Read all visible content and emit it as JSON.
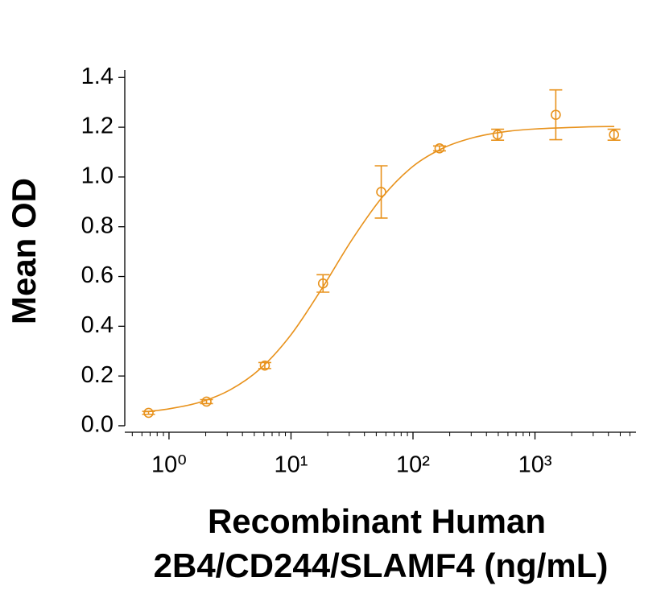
{
  "chart_data": {
    "type": "scatter",
    "xlabel": [
      "Recombinant Human",
      "2B4/CD244/SLAMF4 (ng/mL)"
    ],
    "ylabel": "Mean OD",
    "xscale": "log",
    "xlim": [
      0.434,
      6730
    ],
    "ylim": [
      -0.026,
      1.43
    ],
    "xticks": [
      {
        "value": 1,
        "label": "10⁰"
      },
      {
        "value": 10,
        "label": "10¹"
      },
      {
        "value": 100,
        "label": "10²"
      },
      {
        "value": 1000,
        "label": "10³"
      }
    ],
    "xminorticks": [
      0.5,
      0.6,
      0.7,
      0.8,
      0.9,
      2,
      3,
      4,
      5,
      6,
      7,
      8,
      9,
      20,
      30,
      40,
      50,
      60,
      70,
      80,
      90,
      200,
      300,
      400,
      500,
      600,
      700,
      800,
      900,
      2000,
      3000,
      4000,
      5000,
      6000
    ],
    "yticks": [
      {
        "value": 0,
        "label": "0.0"
      },
      {
        "value": 0.2,
        "label": "0.2"
      },
      {
        "value": 0.4,
        "label": "0.4"
      },
      {
        "value": 0.6,
        "label": "0.6"
      },
      {
        "value": 0.8,
        "label": "0.8"
      },
      {
        "value": 1.0,
        "label": "1.0"
      },
      {
        "value": 1.2,
        "label": "1.2"
      },
      {
        "value": 1.4,
        "label": "1.4"
      }
    ],
    "color": "#e8921c",
    "x": [
      0.68,
      2.03,
      6.1,
      18.3,
      54.9,
      165,
      494,
      1481,
      4444
    ],
    "values": [
      0.052,
      0.097,
      0.242,
      0.572,
      0.94,
      1.115,
      1.17,
      1.25,
      1.17
    ],
    "errors": [
      0.006,
      0.008,
      0.012,
      0.035,
      0.105,
      0.01,
      0.022,
      0.1,
      0.022
    ],
    "curve": {
      "x": [
        0.631,
        1,
        1.778,
        3.162,
        5.623,
        10,
        17.78,
        31.62,
        56.23,
        100,
        177.8,
        316.2,
        562.3,
        1000,
        2512,
        4467
      ],
      "values": [
        0.056,
        0.068,
        0.094,
        0.144,
        0.23,
        0.366,
        0.549,
        0.748,
        0.92,
        1.043,
        1.117,
        1.159,
        1.182,
        1.193,
        1.201,
        1.203
      ]
    }
  }
}
